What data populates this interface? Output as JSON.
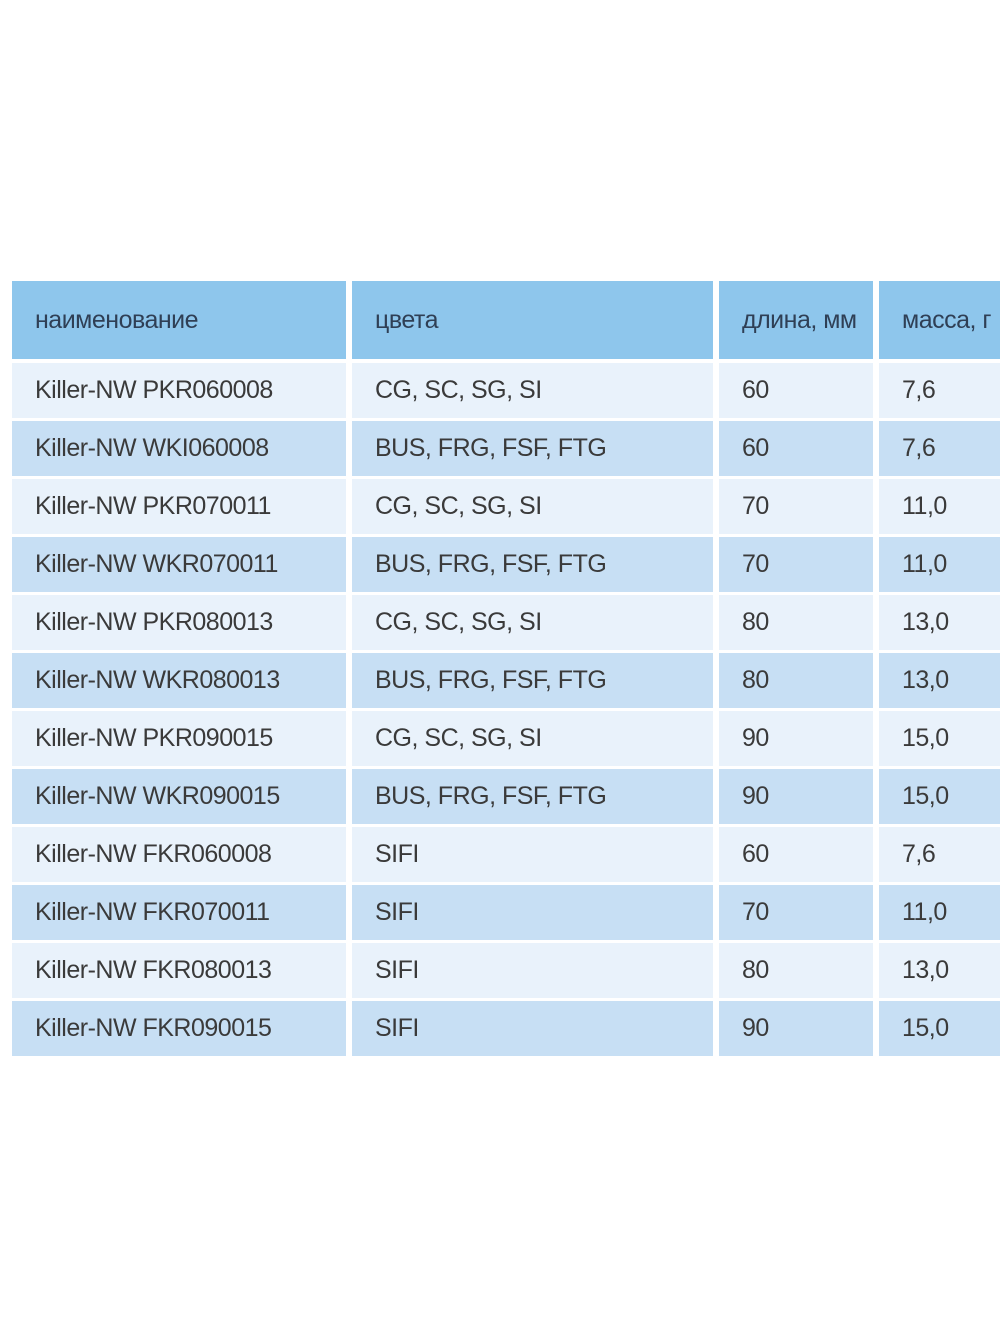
{
  "table": {
    "header": [
      "наименование",
      "цвета",
      "длина, мм",
      "масса, г"
    ],
    "rows": [
      [
        "Killer-NW PKR060008",
        "CG, SC, SG, SI",
        "60",
        "7,6"
      ],
      [
        "Killer-NW WKI060008",
        "BUS, FRG, FSF, FTG",
        "60",
        "7,6"
      ],
      [
        "Killer-NW PKR070011",
        "CG, SC, SG, SI",
        "70",
        "11,0"
      ],
      [
        "Killer-NW WKR070011",
        "BUS, FRG, FSF, FTG",
        "70",
        "11,0"
      ],
      [
        "Killer-NW PKR080013",
        "CG, SC, SG, SI",
        "80",
        "13,0"
      ],
      [
        "Killer-NW WKR080013",
        "BUS, FRG, FSF, FTG",
        "80",
        "13,0"
      ],
      [
        "Killer-NW PKR090015",
        "CG, SC, SG, SI",
        "90",
        "15,0"
      ],
      [
        "Killer-NW WKR090015",
        "BUS, FRG, FSF, FTG",
        "90",
        "15,0"
      ],
      [
        "Killer-NW FKR060008",
        "SIFI",
        "60",
        "7,6"
      ],
      [
        "Killer-NW FKR070011",
        "SIFI",
        "70",
        "11,0"
      ],
      [
        "Killer-NW FKR080013",
        "SIFI",
        "80",
        "13,0"
      ],
      [
        "Killer-NW FKR090015",
        "SIFI",
        "90",
        "15,0"
      ]
    ]
  }
}
